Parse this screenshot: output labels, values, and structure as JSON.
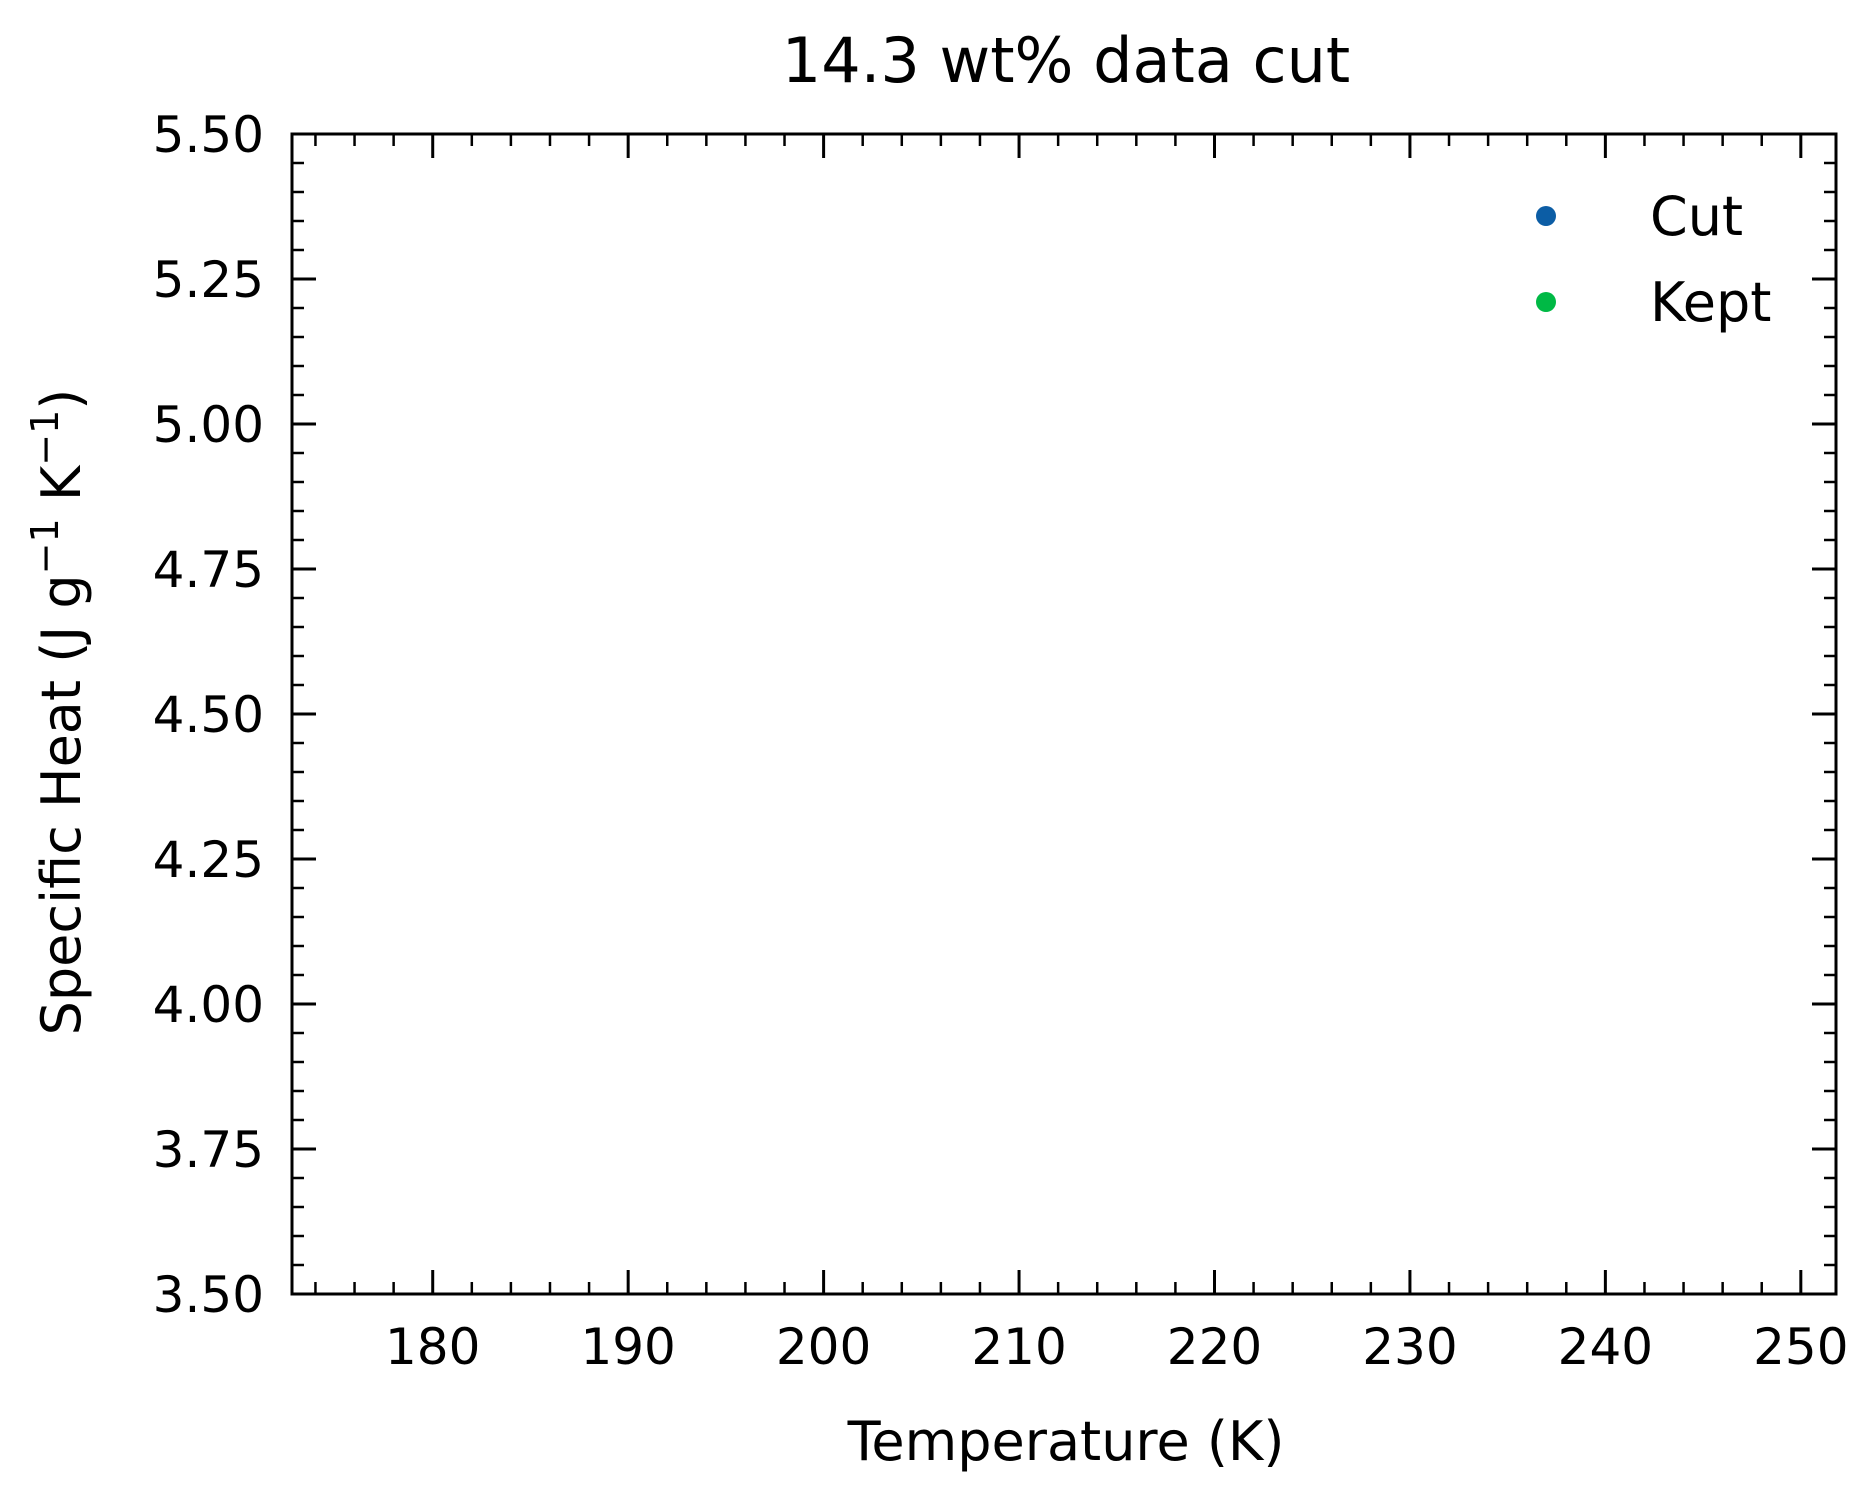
{
  "chart_data": {
    "type": "scatter",
    "title": "14.3 wt% data cut",
    "xlabel": "Temperature (K)",
    "ylabel": {
      "parts": [
        {
          "text": "Specific Heat (J g",
          "sup": false
        },
        {
          "text": "−1",
          "sup": true
        },
        {
          "text": " K",
          "sup": false
        },
        {
          "text": "−1",
          "sup": true
        },
        {
          "text": ")",
          "sup": false
        }
      ]
    },
    "xlim": [
      172.8,
      251.8
    ],
    "ylim": [
      3.5,
      5.5
    ],
    "xticks": {
      "values": [
        180,
        190,
        200,
        210,
        220,
        230,
        240,
        250
      ],
      "labels": [
        "180",
        "190",
        "200",
        "210",
        "220",
        "230",
        "240",
        "250"
      ],
      "minor_step": 2
    },
    "yticks": {
      "values": [
        3.5,
        3.75,
        4.0,
        4.25,
        4.5,
        4.75,
        5.0,
        5.25,
        5.5
      ],
      "labels": [
        "3.50",
        "3.75",
        "4.00",
        "4.25",
        "4.50",
        "4.75",
        "5.00",
        "5.25",
        "5.50"
      ],
      "minor_step": 0.05
    },
    "grid": false,
    "legend_position": "top-right",
    "series": [
      {
        "name": "Cut",
        "color": "#0c5da5",
        "points": []
      },
      {
        "name": "Kept",
        "color": "#00b945",
        "points": []
      }
    ]
  }
}
